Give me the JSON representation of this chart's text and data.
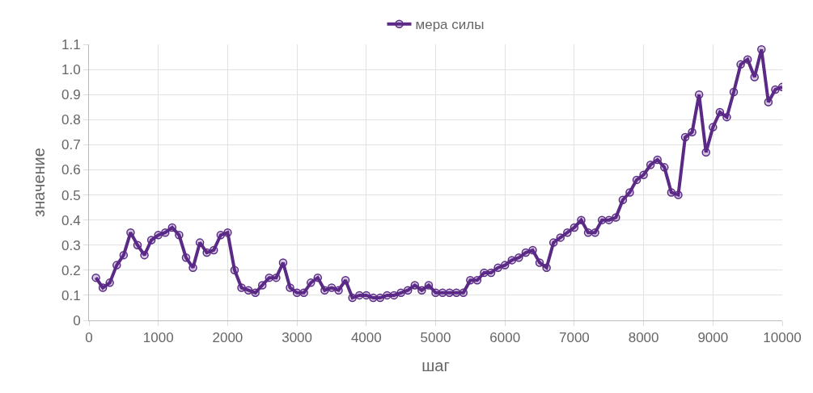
{
  "chart_data": {
    "type": "line",
    "xlabel": "шаг",
    "ylabel": "значение",
    "legend": "top",
    "grid": true,
    "marker": "circle",
    "line_style": "solid",
    "x": [
      100,
      200,
      300,
      400,
      500,
      600,
      700,
      800,
      900,
      1000,
      1100,
      1200,
      1300,
      1400,
      1500,
      1600,
      1700,
      1800,
      1900,
      2000,
      2100,
      2200,
      2300,
      2400,
      2500,
      2600,
      2700,
      2800,
      2900,
      3000,
      3100,
      3200,
      3300,
      3400,
      3500,
      3600,
      3700,
      3800,
      3900,
      4000,
      4100,
      4200,
      4300,
      4400,
      4500,
      4600,
      4700,
      4800,
      4900,
      5000,
      5100,
      5200,
      5300,
      5400,
      5500,
      5600,
      5700,
      5800,
      5900,
      6000,
      6100,
      6200,
      6300,
      6400,
      6500,
      6600,
      6700,
      6800,
      6900,
      7000,
      7100,
      7200,
      7300,
      7400,
      7500,
      7600,
      7700,
      7800,
      7900,
      8000,
      8100,
      8200,
      8300,
      8400,
      8500,
      8600,
      8700,
      8800,
      8900,
      9000,
      9100,
      9200,
      9300,
      9400,
      9500,
      9600,
      9700,
      9800,
      9900,
      10000
    ],
    "series": [
      {
        "name": "мера силы",
        "color": "#5b2a86",
        "values": [
          0.17,
          0.13,
          0.15,
          0.22,
          0.26,
          0.35,
          0.3,
          0.26,
          0.32,
          0.34,
          0.35,
          0.37,
          0.34,
          0.25,
          0.21,
          0.31,
          0.27,
          0.28,
          0.34,
          0.35,
          0.2,
          0.13,
          0.12,
          0.11,
          0.14,
          0.17,
          0.17,
          0.23,
          0.13,
          0.11,
          0.11,
          0.15,
          0.17,
          0.12,
          0.13,
          0.12,
          0.16,
          0.09,
          0.1,
          0.1,
          0.09,
          0.09,
          0.1,
          0.1,
          0.11,
          0.12,
          0.14,
          0.12,
          0.14,
          0.11,
          0.11,
          0.11,
          0.11,
          0.11,
          0.16,
          0.16,
          0.19,
          0.19,
          0.21,
          0.22,
          0.24,
          0.25,
          0.27,
          0.28,
          0.23,
          0.21,
          0.31,
          0.33,
          0.35,
          0.37,
          0.4,
          0.35,
          0.35,
          0.4,
          0.4,
          0.41,
          0.48,
          0.51,
          0.56,
          0.58,
          0.62,
          0.64,
          0.61,
          0.51,
          0.5,
          0.73,
          0.75,
          0.9,
          0.67,
          0.77,
          0.83,
          0.81,
          0.91,
          1.02,
          1.04,
          0.97,
          1.08,
          0.87,
          0.92,
          0.93
        ]
      }
    ],
    "xlim": [
      0,
      10000
    ],
    "xticks": [
      0,
      1000,
      2000,
      3000,
      4000,
      5000,
      6000,
      7000,
      8000,
      9000,
      10000
    ],
    "ylim": [
      0,
      1.1
    ],
    "yticks": [
      0,
      0.1,
      0.2,
      0.3,
      0.4,
      0.5,
      0.6,
      0.7,
      0.8,
      0.9,
      {
        "value": 1,
        "label": "1.0"
      },
      1.1
    ]
  }
}
